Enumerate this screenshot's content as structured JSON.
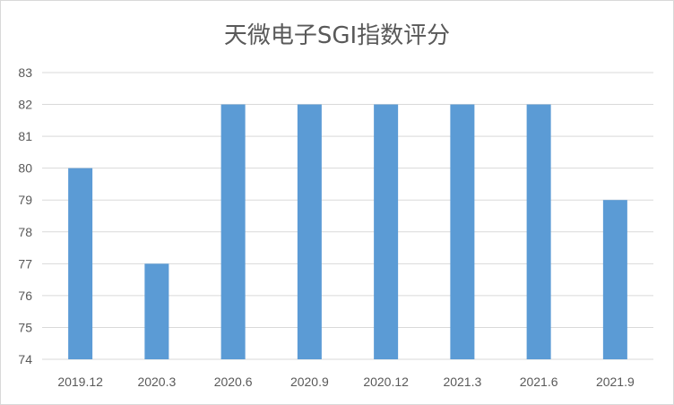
{
  "chart_data": {
    "type": "bar",
    "title": "天微电子SGI指数评分",
    "categories": [
      "2019.12",
      "2020.3",
      "2020.6",
      "2020.9",
      "2020.12",
      "2021.3",
      "2021.6",
      "2021.9"
    ],
    "values": [
      80,
      77,
      82,
      82,
      82,
      82,
      82,
      79
    ],
    "ylim": [
      74,
      83
    ],
    "yticks": [
      "74",
      "75",
      "76",
      "77",
      "78",
      "79",
      "80",
      "81",
      "82",
      "83"
    ],
    "xlabel": "",
    "ylabel": "",
    "grid": true,
    "bar_color": "#5b9bd5",
    "grid_color": "#d9d9d9"
  }
}
